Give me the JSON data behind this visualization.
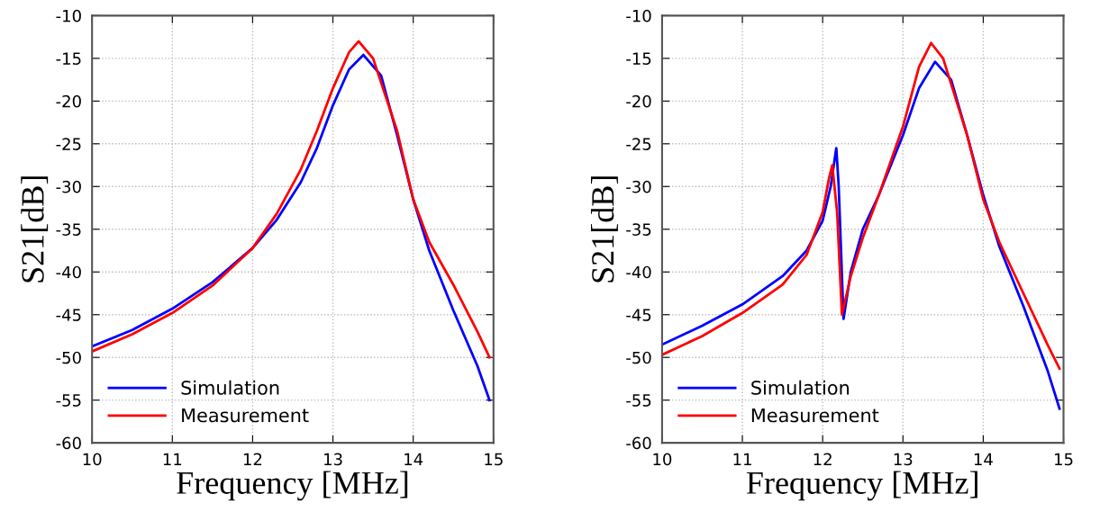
{
  "chart_data": [
    {
      "type": "line",
      "xlabel": "Frequency [MHz]",
      "ylabel": "S21[dB]",
      "xlim": [
        10,
        15
      ],
      "ylim": [
        -60,
        -10
      ],
      "xticks": [
        10,
        11,
        12,
        13,
        14,
        15
      ],
      "yticks": [
        -60,
        -55,
        -50,
        -45,
        -40,
        -35,
        -30,
        -25,
        -20,
        -15,
        -10
      ],
      "grid": true,
      "legend": "bottom left",
      "line_style": "solid",
      "series": [
        {
          "name": "Simulation",
          "color": "#0000ff",
          "x": [
            10,
            10.5,
            11,
            11.5,
            12,
            12.3,
            12.6,
            12.8,
            13.0,
            13.2,
            13.38,
            13.6,
            13.8,
            14,
            14.2,
            14.5,
            14.8,
            14.95
          ],
          "values": [
            -48.7,
            -46.8,
            -44.3,
            -41.2,
            -37.2,
            -33.9,
            -29.5,
            -25.5,
            -20.5,
            -16.3,
            -14.6,
            -17,
            -24,
            -31.5,
            -37.5,
            -44.5,
            -51,
            -55
          ]
        },
        {
          "name": "Measurement",
          "color": "#ff0000",
          "x": [
            10,
            10.5,
            11,
            11.5,
            12,
            12.3,
            12.6,
            12.8,
            13.0,
            13.2,
            13.32,
            13.5,
            13.8,
            14,
            14.2,
            14.5,
            14.8,
            14.95
          ],
          "values": [
            -49.3,
            -47.3,
            -44.8,
            -41.6,
            -37.2,
            -33.2,
            -28,
            -23.5,
            -18.5,
            -14.3,
            -13.0,
            -15,
            -23.5,
            -31.5,
            -36.5,
            -41.5,
            -47,
            -50
          ]
        }
      ]
    },
    {
      "type": "line",
      "xlabel": "Frequency [MHz]",
      "ylabel": "S21[dB]",
      "xlim": [
        10,
        15
      ],
      "ylim": [
        -60,
        -10
      ],
      "xticks": [
        10,
        11,
        12,
        13,
        14,
        15
      ],
      "yticks": [
        -60,
        -55,
        -50,
        -45,
        -40,
        -35,
        -30,
        -25,
        -20,
        -15,
        -10
      ],
      "grid": true,
      "legend": "bottom left",
      "line_style": "solid",
      "series": [
        {
          "name": "Simulation",
          "color": "#0000ff",
          "x": [
            10,
            10.5,
            11,
            11.5,
            11.8,
            12.0,
            12.1,
            12.17,
            12.2,
            12.26,
            12.35,
            12.5,
            12.7,
            13.0,
            13.2,
            13.4,
            13.6,
            13.8,
            14,
            14.2,
            14.5,
            14.8,
            14.95
          ],
          "values": [
            -48.5,
            -46.3,
            -43.8,
            -40.5,
            -37.5,
            -34,
            -30,
            -25.5,
            -30,
            -45.5,
            -40,
            -35,
            -31,
            -24,
            -18.5,
            -15.4,
            -17.5,
            -24,
            -31,
            -37,
            -44,
            -51.5,
            -56
          ]
        },
        {
          "name": "Measurement",
          "color": "#ff0000",
          "x": [
            10,
            10.5,
            11,
            11.5,
            11.8,
            12.0,
            12.08,
            12.12,
            12.18,
            12.24,
            12.35,
            12.5,
            12.7,
            13.0,
            13.2,
            13.35,
            13.5,
            13.8,
            14,
            14.2,
            14.5,
            14.8,
            14.95
          ],
          "values": [
            -49.7,
            -47.5,
            -44.8,
            -41.5,
            -38,
            -33,
            -29,
            -27.5,
            -33,
            -45,
            -40.5,
            -36,
            -31,
            -23,
            -16,
            -13.2,
            -15,
            -24,
            -31.5,
            -36.5,
            -42.5,
            -48.5,
            -51.3
          ]
        }
      ]
    }
  ]
}
